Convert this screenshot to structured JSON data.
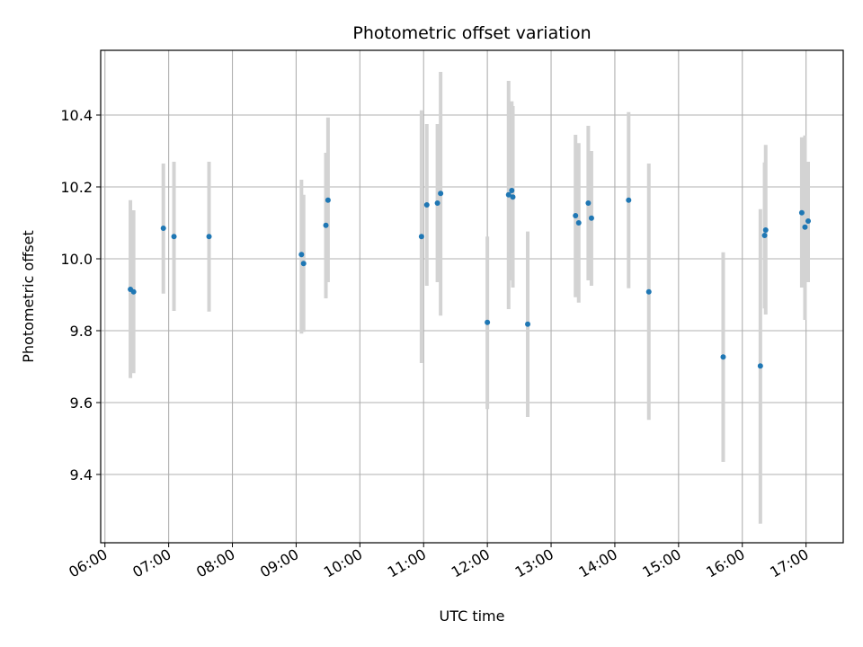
{
  "chart_data": {
    "type": "scatter",
    "title": "Photometric offset variation",
    "xlabel": "UTC time",
    "ylabel": "Photometric offset",
    "x_axis": "time",
    "xlim": [
      "05:56",
      "17:35"
    ],
    "ylim": [
      9.21,
      10.58
    ],
    "x_ticks": [
      "06:00",
      "07:00",
      "08:00",
      "09:00",
      "10:00",
      "11:00",
      "12:00",
      "13:00",
      "14:00",
      "15:00",
      "16:00",
      "17:00"
    ],
    "y_ticks": [
      "9.4",
      "9.6",
      "9.8",
      "10.0",
      "10.2",
      "10.4"
    ],
    "grid": true,
    "marker_color": "#1f77b4",
    "errorbar_color": "#d3d3d3",
    "points": [
      {
        "x": "06:24",
        "y": 9.915,
        "lo": 9.668,
        "hi": 10.163
      },
      {
        "x": "06:27",
        "y": 9.908,
        "lo": 9.682,
        "hi": 10.135
      },
      {
        "x": "06:55",
        "y": 10.085,
        "lo": 9.903,
        "hi": 10.265
      },
      {
        "x": "07:05",
        "y": 10.062,
        "lo": 9.855,
        "hi": 10.27
      },
      {
        "x": "07:38",
        "y": 10.062,
        "lo": 9.853,
        "hi": 10.27
      },
      {
        "x": "09:05",
        "y": 10.012,
        "lo": 9.792,
        "hi": 10.22
      },
      {
        "x": "09:07",
        "y": 9.987,
        "lo": 9.797,
        "hi": 10.178
      },
      {
        "x": "09:28",
        "y": 10.093,
        "lo": 9.89,
        "hi": 10.295
      },
      {
        "x": "09:30",
        "y": 10.163,
        "lo": 9.935,
        "hi": 10.393
      },
      {
        "x": "10:58",
        "y": 10.062,
        "lo": 9.71,
        "hi": 10.413
      },
      {
        "x": "11:03",
        "y": 10.15,
        "lo": 9.925,
        "hi": 10.375
      },
      {
        "x": "11:13",
        "y": 10.155,
        "lo": 9.935,
        "hi": 10.375
      },
      {
        "x": "11:16",
        "y": 10.182,
        "lo": 9.842,
        "hi": 10.52
      },
      {
        "x": "12:00",
        "y": 9.823,
        "lo": 9.582,
        "hi": 10.062
      },
      {
        "x": "12:20",
        "y": 10.178,
        "lo": 9.86,
        "hi": 10.495
      },
      {
        "x": "12:23",
        "y": 10.19,
        "lo": 9.94,
        "hi": 10.438
      },
      {
        "x": "12:24",
        "y": 10.172,
        "lo": 9.92,
        "hi": 10.425
      },
      {
        "x": "12:38",
        "y": 9.818,
        "lo": 9.56,
        "hi": 10.076
      },
      {
        "x": "13:23",
        "y": 10.12,
        "lo": 9.893,
        "hi": 10.345
      },
      {
        "x": "13:26",
        "y": 10.1,
        "lo": 9.878,
        "hi": 10.322
      },
      {
        "x": "13:35",
        "y": 10.155,
        "lo": 9.94,
        "hi": 10.37
      },
      {
        "x": "13:38",
        "y": 10.113,
        "lo": 9.925,
        "hi": 10.3
      },
      {
        "x": "14:13",
        "y": 10.163,
        "lo": 9.918,
        "hi": 10.408
      },
      {
        "x": "14:32",
        "y": 9.908,
        "lo": 9.552,
        "hi": 10.265
      },
      {
        "x": "15:42",
        "y": 9.727,
        "lo": 9.435,
        "hi": 10.018
      },
      {
        "x": "16:17",
        "y": 9.702,
        "lo": 9.263,
        "hi": 10.138
      },
      {
        "x": "16:21",
        "y": 10.065,
        "lo": 9.862,
        "hi": 10.268
      },
      {
        "x": "16:22",
        "y": 10.08,
        "lo": 9.845,
        "hi": 10.317
      },
      {
        "x": "16:56",
        "y": 10.128,
        "lo": 9.92,
        "hi": 10.338
      },
      {
        "x": "16:59",
        "y": 10.088,
        "lo": 9.83,
        "hi": 10.343
      },
      {
        "x": "17:02",
        "y": 10.105,
        "lo": 9.935,
        "hi": 10.27
      }
    ]
  }
}
